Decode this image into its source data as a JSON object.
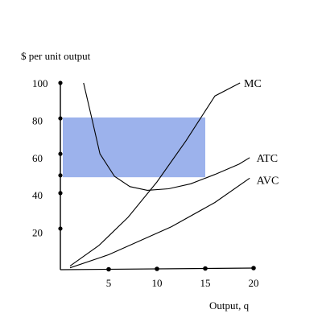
{
  "chart_data": {
    "type": "line",
    "title": "",
    "ylabel": "$ per unit output",
    "xlabel": "Output, q",
    "xlim": [
      0,
      20
    ],
    "ylim": [
      0,
      100
    ],
    "x_ticks": [
      5,
      10,
      15,
      20
    ],
    "y_ticks": [
      20,
      40,
      60,
      80,
      100
    ],
    "x_tick_labels": [
      "5",
      "10",
      "15",
      "20"
    ],
    "y_tick_labels": [
      "20",
      "40",
      "60",
      "80",
      "100"
    ],
    "x_axis_points": [
      5,
      10,
      15,
      20
    ],
    "y_axis_points": [
      22,
      41,
      50.5,
      62,
      81,
      100
    ],
    "grid": false,
    "legend": "none",
    "series": [
      {
        "name": "MC",
        "x": [
          1,
          4,
          7,
          10,
          13,
          16,
          18.6
        ],
        "y": [
          2,
          13,
          28,
          47,
          69,
          93,
          100
        ],
        "label_x": 19,
        "label_y": 100
      },
      {
        "name": "ATC",
        "x": [
          2.4,
          3.3,
          4.1,
          5.6,
          7.2,
          9,
          11.2,
          13.5,
          16,
          18.5,
          19.6
        ],
        "y": [
          100,
          80,
          62,
          50,
          44.5,
          42.5,
          43.3,
          46,
          51,
          56.5,
          60
        ],
        "label_x": 20.3,
        "label_y": 60
      },
      {
        "name": "AVC",
        "x": [
          1,
          5,
          11.5,
          16,
          19.6
        ],
        "y": [
          1,
          8,
          23,
          36,
          49
        ],
        "label_x": 20.3,
        "label_y": 48
      }
    ],
    "profit_region": {
      "x": [
        0,
        15
      ],
      "y": [
        49.5,
        81.5
      ],
      "color": "#9cb2ec"
    },
    "colors": {
      "axis": "#000000",
      "curve": "#000000",
      "region": "#9cb2ec",
      "point": "#000000"
    }
  }
}
